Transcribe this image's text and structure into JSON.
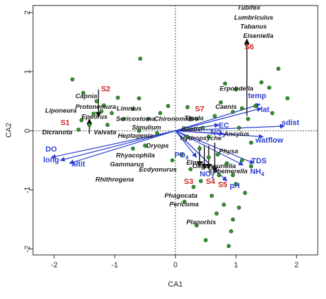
{
  "chart_data": {
    "type": "scatter",
    "title": "",
    "xlabel": "CA1",
    "ylabel": "CA2",
    "xlim": [
      -2.35,
      2.35
    ],
    "ylim": [
      -2.1,
      2.12
    ],
    "x_ticks": [
      "-2",
      "-1",
      "0",
      "1",
      "2"
    ],
    "y_ticks": [
      "-2",
      "-1",
      "0",
      "1",
      "2"
    ],
    "x_tick_values": [
      -2,
      -1,
      0,
      1,
      2
    ],
    "y_tick_values": [
      -2,
      -1,
      0,
      1,
      2
    ],
    "sample_points": [
      [
        -1.7,
        0.87
      ],
      [
        -1.52,
        0.64
      ],
      [
        -1.35,
        0.29
      ],
      [
        -1.3,
        0.5
      ],
      [
        -1.22,
        0.33
      ],
      [
        -1.18,
        0.43
      ],
      [
        -1.42,
        0.1
      ],
      [
        -1.55,
        0.18
      ],
      [
        -1.6,
        0.02
      ],
      [
        -1.12,
        0.1
      ],
      [
        -1.05,
        0.3
      ],
      [
        -0.95,
        0.56
      ],
      [
        -0.6,
        0.55
      ],
      [
        -0.6,
        0.0
      ],
      [
        -0.45,
        0.2
      ],
      [
        -0.3,
        -0.04
      ],
      [
        -0.7,
        -0.3
      ],
      [
        -0.58,
        1.22
      ],
      [
        -0.25,
        0.3
      ],
      [
        -0.12,
        0.42
      ],
      [
        -0.7,
        0.37
      ],
      [
        -0.85,
        0.2
      ],
      [
        -0.5,
        -0.25
      ],
      [
        0.2,
        0.4
      ],
      [
        0.35,
        0.2
      ],
      [
        0.45,
        0.05
      ],
      [
        0.55,
        -0.1
      ],
      [
        0.65,
        0.25
      ],
      [
        0.75,
        0.48
      ],
      [
        0.82,
        0.8
      ],
      [
        0.95,
        0.32
      ],
      [
        1.0,
        0.7
      ],
      [
        1.1,
        0.38
      ],
      [
        1.2,
        0.2
      ],
      [
        1.32,
        0.42
      ],
      [
        1.42,
        0.82
      ],
      [
        1.55,
        0.73
      ],
      [
        1.7,
        1.05
      ],
      [
        1.85,
        0.55
      ],
      [
        1.6,
        0.3
      ],
      [
        0.4,
        -0.3
      ],
      [
        0.55,
        -0.45
      ],
      [
        0.7,
        -0.4
      ],
      [
        0.85,
        -0.55
      ],
      [
        0.95,
        -0.75
      ],
      [
        1.0,
        -0.9
      ],
      [
        1.1,
        -0.5
      ],
      [
        1.25,
        -0.6
      ],
      [
        0.72,
        -0.75
      ],
      [
        0.6,
        -1.1
      ],
      [
        0.68,
        -1.4
      ],
      [
        0.8,
        -1.25
      ],
      [
        0.95,
        -1.5
      ],
      [
        1.05,
        -1.3
      ],
      [
        0.3,
        -0.95
      ],
      [
        0.25,
        -0.65
      ],
      [
        0.42,
        -0.85
      ],
      [
        0.88,
        -1.95
      ],
      [
        0.35,
        -1.6
      ],
      [
        0.5,
        -1.85
      ],
      [
        0.15,
        -1.2
      ],
      [
        0.1,
        -0.4
      ],
      [
        1.15,
        -1.05
      ],
      [
        0.92,
        -1.7
      ],
      [
        -0.05,
        -0.5
      ],
      [
        0.2,
        -0.1
      ],
      [
        1.05,
        0.05
      ],
      [
        1.25,
        -0.2
      ]
    ],
    "species": [
      {
        "name": "Tubifex",
        "x": 1.02,
        "y": 2.05
      },
      {
        "name": "Lumbriculus",
        "x": 0.97,
        "y": 1.88
      },
      {
        "name": "Tabanus",
        "x": 1.07,
        "y": 1.73
      },
      {
        "name": "Eiseniella",
        "x": 1.12,
        "y": 1.57
      },
      {
        "name": "Erpobdella",
        "x": 0.73,
        "y": 0.68
      },
      {
        "name": "Capnia",
        "x": -1.65,
        "y": 0.55
      },
      {
        "name": "Protonemura",
        "x": -1.65,
        "y": 0.37
      },
      {
        "name": "Limnius",
        "x": -0.97,
        "y": 0.34
      },
      {
        "name": "Liponeura",
        "x": -2.15,
        "y": 0.31
      },
      {
        "name": "Epeorus",
        "x": -1.55,
        "y": 0.2
      },
      {
        "name": "Dicranota",
        "x": -2.2,
        "y": -0.06
      },
      {
        "name": "Valvata",
        "x": -1.35,
        "y": -0.06
      },
      {
        "name": "Sericostoma",
        "x": -0.98,
        "y": 0.17
      },
      {
        "name": "Simulium",
        "x": -0.72,
        "y": 0.02
      },
      {
        "name": "Chironomids",
        "x": -0.35,
        "y": 0.17
      },
      {
        "name": "Tipula",
        "x": 0.15,
        "y": 0.18
      },
      {
        "name": "Caenis",
        "x": 0.66,
        "y": 0.37
      },
      {
        "name": "Baetis",
        "x": 0.1,
        "y": 0.0
      },
      {
        "name": "Heptagenia",
        "x": -0.95,
        "y": -0.12
      },
      {
        "name": "Hydropsyche",
        "x": 0.08,
        "y": -0.16
      },
      {
        "name": "Dryops",
        "x": -0.48,
        "y": -0.29
      },
      {
        "name": "Rhyacophila",
        "x": -0.98,
        "y": -0.45
      },
      {
        "name": "Elmis",
        "x": 0.18,
        "y": -0.57
      },
      {
        "name": "Oligoneuriella",
        "x": 0.28,
        "y": -0.63
      },
      {
        "name": "Gammarus",
        "x": -1.08,
        "y": -0.6
      },
      {
        "name": "Ecdyonurus",
        "x": -0.6,
        "y": -0.69
      },
      {
        "name": "Ephemerella",
        "x": 0.55,
        "y": -0.72
      },
      {
        "name": "Rhithrogena",
        "x": -1.32,
        "y": -0.86
      },
      {
        "name": "Physa",
        "x": 0.72,
        "y": -0.38
      },
      {
        "name": "Ancylus",
        "x": 0.8,
        "y": -0.09
      },
      {
        "name": "Phagocata",
        "x": -0.18,
        "y": -1.13
      },
      {
        "name": "Pericoma",
        "x": -0.1,
        "y": -1.28
      },
      {
        "name": "Planorbis",
        "x": 0.18,
        "y": -1.58
      }
    ],
    "sites": [
      {
        "name": "S1",
        "x": -1.82,
        "y": 0.1
      },
      {
        "name": "S2",
        "x": -1.15,
        "y": 0.67
      },
      {
        "name": "S6",
        "x": 1.22,
        "y": 1.38
      },
      {
        "name": "S7",
        "x": 0.4,
        "y": 0.33
      },
      {
        "name": "S3",
        "x": 0.22,
        "y": -0.9
      },
      {
        "name": "S4",
        "x": 0.58,
        "y": -0.9
      },
      {
        "name": "S5",
        "x": 0.78,
        "y": -0.95
      }
    ],
    "site_arrows": [
      {
        "from": [
          -1.27,
          0.7
        ],
        "to": [
          -1.27,
          0.23
        ]
      },
      {
        "from": [
          -1.42,
          -0.05
        ],
        "to": [
          -1.42,
          0.2
        ]
      },
      {
        "from": [
          1.18,
          0.25
        ],
        "to": [
          1.18,
          1.55
        ]
      },
      {
        "from": [
          0.48,
          -0.25
        ],
        "to": [
          0.48,
          -0.65
        ]
      },
      {
        "from": [
          0.55,
          -0.25
        ],
        "to": [
          0.55,
          -0.65
        ]
      },
      {
        "from": [
          0.65,
          -0.2
        ],
        "to": [
          0.65,
          -0.7
        ]
      },
      {
        "from": [
          0.4,
          -0.25
        ],
        "to": [
          0.4,
          -0.6
        ]
      }
    ],
    "env_vectors": [
      {
        "name": "temp",
        "x": 1.4,
        "y": 0.45
      },
      {
        "name": "lat",
        "x": 1.42,
        "y": 0.38
      },
      {
        "name": "sdist",
        "x": 1.8,
        "y": 0.08
      },
      {
        "name": "watflow",
        "x": 1.45,
        "y": -0.1
      },
      {
        "name": "TDS",
        "x": 1.3,
        "y": -0.55
      },
      {
        "name": "NH4",
        "x": 1.12,
        "y": -0.58
      },
      {
        "name": "pH",
        "x": 0.85,
        "y": -0.85
      },
      {
        "name": "NO2",
        "x": 0.7,
        "y": -0.7
      },
      {
        "name": "NO3",
        "x": 0.8,
        "y": -0.05
      },
      {
        "name": "EC",
        "x": 0.72,
        "y": 0.1
      },
      {
        "name": "PO4",
        "x": 0.35,
        "y": -0.45
      },
      {
        "name": "DO",
        "x": -2.05,
        "y": -0.45
      },
      {
        "name": "long",
        "x": -1.9,
        "y": -0.5
      },
      {
        "name": "altit",
        "x": -1.75,
        "y": -0.55
      }
    ],
    "env_label_pos": {
      "temp": [
        1.35,
        0.55
      ],
      "lat": [
        1.48,
        0.32
      ],
      "sdist": [
        1.9,
        0.1
      ],
      "watflow": [
        1.55,
        -0.2
      ],
      "TDS": [
        1.38,
        -0.55
      ],
      "NH4": [
        1.35,
        -0.73
      ],
      "pH": [
        0.98,
        -0.97
      ],
      "NO2": [
        0.52,
        -0.77
      ],
      "NO3": [
        0.7,
        -0.07
      ],
      "EC": [
        0.8,
        0.05
      ],
      "PO4": [
        0.1,
        -0.45
      ],
      "DO": [
        -2.05,
        -0.35
      ],
      "long": [
        -2.05,
        -0.53
      ],
      "altit": [
        -1.6,
        -0.6
      ]
    },
    "colors": {
      "points": "#2e9a2e",
      "point_stroke": "#0e3a0e",
      "sites": "#d42020",
      "vectors": "#2a3fd0",
      "arrows": "#111111"
    }
  }
}
